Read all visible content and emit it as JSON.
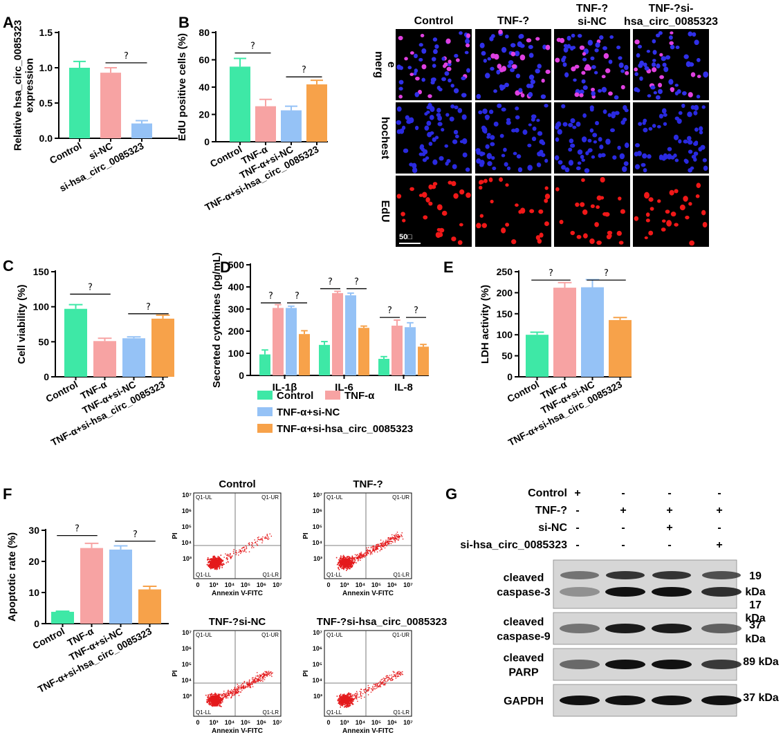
{
  "colors": {
    "control": "#3ee8a6",
    "tnf": "#f7a3a3",
    "sinc": "#95c2f6",
    "sihsa": "#f7a24a"
  },
  "chart_data": [
    {
      "panel": "A",
      "type": "bar",
      "categories": [
        "Control",
        "si-NC",
        "si-hsa_circ_0085323"
      ],
      "values": [
        1.0,
        0.93,
        0.21
      ],
      "errors": [
        0.09,
        0.07,
        0.04
      ],
      "colors": [
        "#3ee8a6",
        "#f7a3a3",
        "#95c2f6"
      ],
      "ylabel_lines": [
        "Relative hsa_circ_0085323",
        "expression"
      ],
      "ylim": [
        0,
        1.5
      ],
      "yticks": [
        "0.0",
        "0.5",
        "1.0",
        "1.5"
      ],
      "sig": [
        {
          "from": 1,
          "to": 2,
          "y": 1.07,
          "label": "?"
        }
      ]
    },
    {
      "panel": "B",
      "type": "bar",
      "categories": [
        "Control",
        "TNF-α",
        "TNF-α+si-NC",
        "TNF-α+si-hsa_circ_0085323"
      ],
      "values": [
        55,
        26,
        23,
        42
      ],
      "errors": [
        6,
        5,
        3,
        3
      ],
      "colors": [
        "#3ee8a6",
        "#f7a3a3",
        "#95c2f6",
        "#f7a24a"
      ],
      "ylabel_lines": [
        "EdU positive cells (%)"
      ],
      "ylim": [
        0,
        80
      ],
      "yticks": [
        "0",
        "20",
        "40",
        "60",
        "80"
      ],
      "sig": [
        {
          "from": 0,
          "to": 1,
          "y": 65,
          "label": "?"
        },
        {
          "from": 2,
          "to": 3,
          "y": 47.5,
          "label": "?"
        }
      ]
    },
    {
      "panel": "C",
      "type": "bar",
      "categories": [
        "Control",
        "TNF-α",
        "TNF-α+si-NC",
        "TNF-α+si-hsa_circ_0085323"
      ],
      "values": [
        97,
        51,
        55,
        83
      ],
      "errors": [
        6,
        4,
        2,
        5
      ],
      "colors": [
        "#3ee8a6",
        "#f7a3a3",
        "#95c2f6",
        "#f7a24a"
      ],
      "ylabel_lines": [
        "Cell viability (%)"
      ],
      "ylim": [
        0,
        150
      ],
      "yticks": [
        "0",
        "50",
        "100",
        "150"
      ],
      "sig": [
        {
          "from": 0,
          "to": 1,
          "y": 118,
          "label": "?"
        },
        {
          "from": 2,
          "to": 3,
          "y": 90,
          "label": "?"
        }
      ]
    },
    {
      "panel": "D",
      "type": "grouped_bar",
      "categories": [
        "IL-1β",
        "IL-6",
        "IL-8"
      ],
      "series": [
        {
          "name": "Control",
          "values": [
            95,
            138,
            75
          ],
          "errors": [
            20,
            15,
            10
          ]
        },
        {
          "name": "TNF-α",
          "values": [
            305,
            372,
            225
          ],
          "errors": [
            15,
            8,
            25
          ]
        },
        {
          "name": "TNF-α+si-NC",
          "values": [
            305,
            362,
            218
          ],
          "errors": [
            8,
            10,
            20
          ]
        },
        {
          "name": "TNF-α+si-hsa_circ_0085323",
          "values": [
            187,
            215,
            130
          ],
          "errors": [
            15,
            8,
            10
          ]
        }
      ],
      "colors": [
        "#3ee8a6",
        "#f7a3a3",
        "#95c2f6",
        "#f7a24a"
      ],
      "ylabel_lines": [
        "Secreted cytokines (pg/mL)"
      ],
      "ylim": [
        0,
        500
      ],
      "yticks": [
        "0",
        "100",
        "200",
        "300",
        "400",
        "500"
      ],
      "sig": [
        {
          "group": 0,
          "from": 0,
          "to": 1,
          "y": 328,
          "label": "?"
        },
        {
          "group": 0,
          "from": 2,
          "to": 3,
          "y": 328,
          "label": "?"
        },
        {
          "group": 1,
          "from": 0,
          "to": 1,
          "y": 392,
          "label": "?"
        },
        {
          "group": 1,
          "from": 2,
          "to": 3,
          "y": 392,
          "label": "?"
        },
        {
          "group": 2,
          "from": 0,
          "to": 1,
          "y": 262,
          "label": "?"
        },
        {
          "group": 2,
          "from": 2,
          "to": 3,
          "y": 262,
          "label": "?"
        }
      ]
    },
    {
      "panel": "E",
      "type": "bar",
      "categories": [
        "Control",
        "TNF-α",
        "TNF-α+si-NC",
        "TNF-α+si-hsa_circ_0085323"
      ],
      "values": [
        100,
        212,
        213,
        135
      ],
      "errors": [
        6,
        12,
        18,
        6
      ],
      "colors": [
        "#3ee8a6",
        "#f7a3a3",
        "#95c2f6",
        "#f7a24a"
      ],
      "ylabel_lines": [
        "LDH activity (%)"
      ],
      "ylim": [
        0,
        250
      ],
      "yticks": [
        "0",
        "50",
        "100",
        "150",
        "200",
        "250"
      ],
      "sig": [
        {
          "from": 0,
          "to": 1,
          "y": 230,
          "label": "?"
        },
        {
          "from": 2,
          "to": 3,
          "y": 230,
          "label": "?"
        }
      ]
    },
    {
      "panel": "F",
      "type": "bar",
      "categories": [
        "Control",
        "TNF-α",
        "TNF-α+si-NC",
        "TNF-α+si-hsa_circ_0085323"
      ],
      "values": [
        3.8,
        24.3,
        23.8,
        11.0
      ],
      "errors": [
        0.2,
        1.5,
        1.2,
        1.0
      ],
      "colors": [
        "#3ee8a6",
        "#f7a3a3",
        "#95c2f6",
        "#f7a24a"
      ],
      "ylabel_lines": [
        "Apoptotic rate (%)"
      ],
      "ylim": [
        0,
        30
      ],
      "yticks": [
        "0",
        "10",
        "20",
        "30"
      ],
      "sig": [
        {
          "from": 0,
          "to": 1,
          "y": 28.3,
          "label": "?"
        },
        {
          "from": 2,
          "to": 3,
          "y": 26.5,
          "label": "?"
        }
      ]
    }
  ],
  "legend_D": [
    "Control",
    "TNF-α",
    "TNF-α+si-NC",
    "TNF-α+si-hsa_circ_0085323"
  ],
  "microscopy": {
    "columns": [
      "Control",
      "TNF-?",
      "TNF-?\nsi-NC",
      "TNF-?si-\nhsa_circ_0085323"
    ],
    "rows": [
      "merg\ne",
      "hochest",
      "EdU"
    ],
    "scale_bar": "50□"
  },
  "flow": {
    "titles": [
      "Control",
      "TNF-?",
      "TNF-?si-NC",
      "TNF-?si-hsa_circ_0085323"
    ],
    "quadrants": [
      "Q1-UL",
      "Q1-UR",
      "Q1-LL",
      "Q1-LR"
    ],
    "xlabel": "Annexin  V-FITC",
    "ylabel": "PI",
    "ticks": [
      "0",
      "10³",
      "10⁴",
      "10⁵",
      "10⁶",
      "10⁷"
    ]
  },
  "western": {
    "conditions": [
      {
        "label": "Control",
        "signs": [
          "+",
          "-",
          "-",
          "-"
        ]
      },
      {
        "label": "TNF-?",
        "signs": [
          "-",
          "+",
          "+",
          "+"
        ]
      },
      {
        "label": "si-NC",
        "signs": [
          "-",
          "-",
          "+",
          "-"
        ]
      },
      {
        "label": "si-hsa_circ_0085323",
        "signs": [
          "-",
          "-",
          "-",
          "+"
        ]
      }
    ],
    "blots": [
      {
        "label": "cleaved\ncaspase-3",
        "sizes": [
          "19",
          "kDa",
          "17"
        ]
      },
      {
        "label": "cleaved\ncaspase-9",
        "sizes": [
          "kDa",
          "37",
          "kDa"
        ]
      },
      {
        "label": "cleaved\nPARP",
        "sizes": [
          "89 kDa"
        ]
      },
      {
        "label": "GAPDH",
        "sizes": [
          "37 kDa"
        ]
      }
    ]
  },
  "panel_letters": [
    "A",
    "B",
    "C",
    "D",
    "E",
    "F",
    "G"
  ]
}
